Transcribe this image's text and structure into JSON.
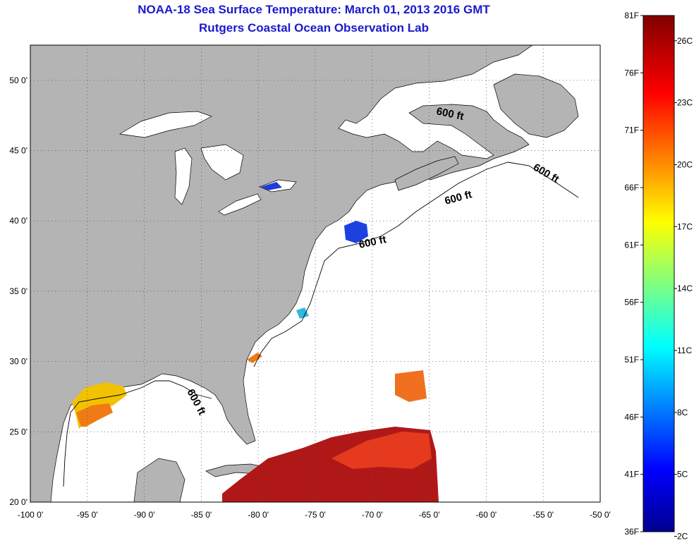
{
  "title": {
    "line1": "NOAA-18 Sea Surface Temperature:  March 01, 2013 2016 GMT",
    "line2": "Rutgers Coastal Ocean Observation Lab"
  },
  "map": {
    "lon_range": [
      -100,
      -50
    ],
    "lat_range": [
      20,
      52.5
    ],
    "lon_ticks": [
      -100,
      -95,
      -90,
      -85,
      -80,
      -75,
      -70,
      -65,
      -60,
      -55,
      -50
    ],
    "lon_labels": [
      "-100 0'",
      "-95 0'",
      "-90 0'",
      "-85 0'",
      "-80 0'",
      "-75 0'",
      "-70 0'",
      "-65 0'",
      "-60 0'",
      "-55 0'",
      "-50 0'"
    ],
    "lat_ticks": [
      20,
      25,
      30,
      35,
      40,
      45,
      50
    ],
    "lat_labels": [
      "20 0'",
      "25 0'",
      "30 0'",
      "35 0'",
      "40 0'",
      "45 0'",
      "50 0'"
    ],
    "gridlines": "dotted",
    "land_color": "#b4b4b4",
    "contour_labels": [
      "600 ft",
      "600 ft",
      "600 ft",
      "600 ft",
      "600 ft"
    ]
  },
  "colorbar": {
    "f_labels": [
      "81F",
      "76F",
      "71F",
      "66F",
      "61F",
      "56F",
      "51F",
      "46F",
      "41F",
      "36F"
    ],
    "c_labels": [
      "26C",
      "23C",
      "20C",
      "17C",
      "14C",
      "11C",
      "8C",
      "5C",
      "2C"
    ],
    "colors": [
      "#00008f",
      "#0000ff",
      "#00ffff",
      "#ffff00",
      "#ff0000",
      "#800000"
    ]
  }
}
